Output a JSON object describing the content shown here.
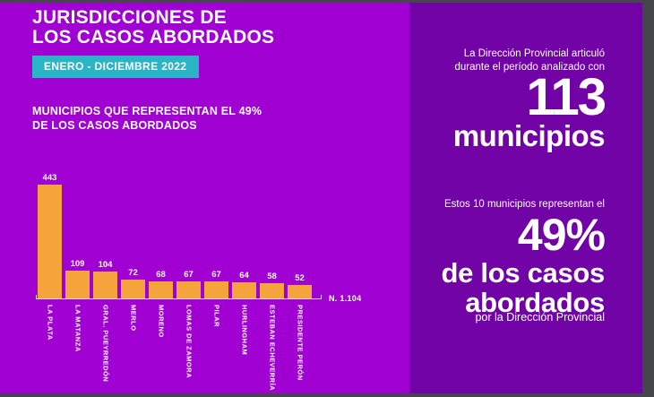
{
  "colors": {
    "left_bg": "#A000D2",
    "right_bg": "#7103A6",
    "frame": "#45464B",
    "bar_color": "#F5A43C",
    "accent_orange": "#F5A43C",
    "accent_teal": "#14AEBE",
    "accent_teal_badge": "#2AB5C6",
    "text": "#FFFFFF"
  },
  "header": {
    "title_line1": "JURISDICCIONES DE",
    "title_line2": "LOS CASOS ABORDADOS",
    "period_badge": "ENERO - DICIEMBRE 2022",
    "subtitle_line1": "MUNICIPIOS QUE REPRESENTAN EL 49%",
    "subtitle_line2": "DE LOS CASOS ABORDADOS"
  },
  "chart_data": {
    "type": "bar",
    "title": "MUNICIPIOS QUE REPRESENTAN EL 49% DE LOS CASOS ABORDADOS",
    "categories": [
      "LA PLATA",
      "LA MATANZA",
      "GRAL. PUEYRREDÓN",
      "MERLO",
      "MORENO",
      "LOMAS DE ZAMORA",
      "PILAR",
      "HURLINGHAM",
      "ESTEBAN ECHEVERRÍA",
      "PRESIDENTE PERÓN"
    ],
    "values": [
      443,
      109,
      104,
      72,
      68,
      67,
      67,
      64,
      58,
      52
    ],
    "total_note": "N. 1.104",
    "xlabel": "",
    "ylabel": "",
    "ylim": [
      0,
      443
    ],
    "grid": false,
    "value_labels_shown": true,
    "bar_color": "#F5A43C"
  },
  "sidebar": {
    "intro_line1": "La Dirección Provincial articuló",
    "intro_line2": "durante el período analizado con",
    "big_number": "113",
    "big_number_label": "municipios",
    "second_intro": "Estos 10 municipios representan el",
    "percentage": "49%",
    "percentage_label_line1": "de los casos",
    "percentage_label_line2": "abordados",
    "footnote": "por la Dirección Provincial"
  }
}
